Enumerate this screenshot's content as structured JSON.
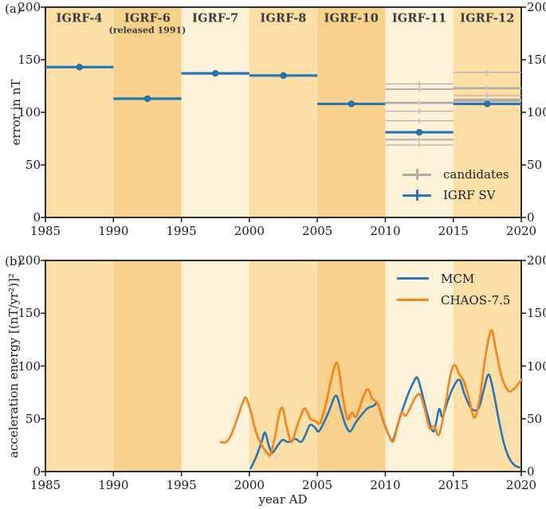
{
  "figure": {
    "panel_a_letter": "(a)",
    "panel_b_letter": "(b)"
  },
  "colors": {
    "blue": "#2577b5",
    "blue_dark": "#1b5e8f",
    "orange": "#f7821b",
    "gray": "#adadad",
    "gray_light": "#c3c3c3",
    "axis": "#1a1a1a",
    "band_light": "#fdf2d8",
    "band_medium": "#fbdfa6",
    "band_dark": "#f8d28c"
  },
  "x_axis": {
    "label": "year AD",
    "min": 1985,
    "max": 2020,
    "ticks": [
      1985,
      1990,
      1995,
      2000,
      2005,
      2010,
      2015,
      2020
    ]
  },
  "panel_a": {
    "ylabel": "error in nT",
    "ymin": 0,
    "ymax": 200,
    "y_ticks": [
      0,
      50,
      100,
      150,
      200
    ],
    "bands": [
      {
        "label": "IGRF-4",
        "sub": "",
        "span": [
          1985,
          1990
        ],
        "shade": "band_medium"
      },
      {
        "label": "IGRF-6",
        "sub": "(released 1991)",
        "span": [
          1990,
          1995
        ],
        "shade": "band_dark"
      },
      {
        "label": "IGRF-7",
        "sub": "",
        "span": [
          1995,
          2000
        ],
        "shade": "band_light"
      },
      {
        "label": "IGRF-8",
        "sub": "",
        "span": [
          2000,
          2005
        ],
        "shade": "band_medium"
      },
      {
        "label": "IGRF-10",
        "sub": "",
        "span": [
          2005,
          2010
        ],
        "shade": "band_dark"
      },
      {
        "label": "IGRF-11",
        "sub": "",
        "span": [
          2010,
          2015
        ],
        "shade": "band_light"
      },
      {
        "label": "IGRF-12",
        "sub": "",
        "span": [
          2015,
          2020
        ],
        "shade": "band_medium"
      }
    ],
    "legend": [
      {
        "label": "candidates",
        "color_key": "gray"
      },
      {
        "label": "IGRF SV",
        "color_key": "blue"
      }
    ]
  },
  "panel_b": {
    "ylabel": "acceleration energy [(nT/yr²)]²",
    "ymin": 0,
    "ymax": 200,
    "y_ticks": [
      0,
      50,
      100,
      150,
      200
    ],
    "legend": [
      {
        "label": "MCM",
        "color_key": "blue"
      },
      {
        "label": "CHAOS-7.5",
        "color_key": "orange"
      }
    ]
  },
  "chart_data": [
    {
      "type": "line",
      "title": "IGRF model prediction error",
      "xlabel": "year AD",
      "ylabel": "error in nT",
      "xlim": [
        1985,
        2020
      ],
      "ylim": [
        0,
        200
      ],
      "grid": false,
      "legend_position": "lower right",
      "igrf_sv_segments": [
        {
          "model": "IGRF-4",
          "x0": 1985,
          "x1": 1990,
          "value": 143,
          "marker_x": 1987.5
        },
        {
          "model": "IGRF-6",
          "x0": 1990,
          "x1": 1995,
          "value": 113,
          "marker_x": 1992.5
        },
        {
          "model": "IGRF-7",
          "x0": 1995,
          "x1": 2000,
          "value": 137,
          "marker_x": 1997.5
        },
        {
          "model": "IGRF-8",
          "x0": 2000,
          "x1": 2005,
          "value": 135,
          "marker_x": 2002.5
        },
        {
          "model": "IGRF-10",
          "x0": 2005,
          "x1": 2010,
          "value": 108,
          "marker_x": 2007.5
        },
        {
          "model": "IGRF-11",
          "x0": 2010,
          "x1": 2015,
          "value": 81,
          "marker_x": 2012.5
        },
        {
          "model": "IGRF-12",
          "x0": 2015,
          "x1": 2020,
          "value": 108,
          "marker_x": 2017.5
        }
      ],
      "candidates": [
        {
          "epoch": "IGRF-11",
          "x0": 2010,
          "x1": 2015,
          "marker_x": 2012.5,
          "values": [
            127,
            122,
            109,
            101,
            92,
            74,
            69
          ],
          "weights": [
            1.2,
            1.8,
            2.8,
            1.2,
            1.2,
            1.8,
            1.2
          ]
        },
        {
          "epoch": "IGRF-12",
          "x0": 2015,
          "x1": 2020,
          "marker_x": 2017.5,
          "values": [
            138,
            123,
            116,
            111.5
          ],
          "weights": [
            1.2,
            2.6,
            1.0,
            4.0
          ]
        }
      ]
    },
    {
      "type": "line",
      "title": "geomagnetic acceleration energy",
      "xlabel": "year AD",
      "ylabel": "acceleration energy [(nT/yr²)]²",
      "xlim": [
        1985,
        2020
      ],
      "ylim": [
        0,
        200
      ],
      "grid": false,
      "legend_position": "upper right",
      "series": [
        {
          "name": "MCM",
          "color_key": "blue",
          "points": [
            [
              2000.1,
              3
            ],
            [
              2000.5,
              14
            ],
            [
              2000.9,
              28
            ],
            [
              2001.15,
              37
            ],
            [
              2001.45,
              24
            ],
            [
              2001.7,
              18
            ],
            [
              2002.1,
              25
            ],
            [
              2002.45,
              30
            ],
            [
              2002.8,
              28
            ],
            [
              2003.1,
              29
            ],
            [
              2003.4,
              31
            ],
            [
              2003.8,
              28
            ],
            [
              2004.1,
              34
            ],
            [
              2004.45,
              44
            ],
            [
              2004.8,
              42
            ],
            [
              2005.1,
              38
            ],
            [
              2005.5,
              47
            ],
            [
              2005.85,
              57
            ],
            [
              2006.35,
              72
            ],
            [
              2006.7,
              60
            ],
            [
              2007.05,
              45
            ],
            [
              2007.4,
              38
            ],
            [
              2007.8,
              46
            ],
            [
              2008.2,
              53
            ],
            [
              2008.7,
              60
            ],
            [
              2009.1,
              62
            ],
            [
              2009.45,
              64
            ],
            [
              2009.8,
              50
            ],
            [
              2010.2,
              36
            ],
            [
              2010.55,
              30
            ],
            [
              2010.9,
              44
            ],
            [
              2011.3,
              60
            ],
            [
              2011.7,
              74
            ],
            [
              2012.05,
              84
            ],
            [
              2012.35,
              89
            ],
            [
              2012.7,
              74
            ],
            [
              2013.1,
              54
            ],
            [
              2013.55,
              38
            ],
            [
              2013.95,
              59
            ],
            [
              2014.2,
              52
            ],
            [
              2014.6,
              67
            ],
            [
              2015.0,
              80
            ],
            [
              2015.45,
              87
            ],
            [
              2015.8,
              74
            ],
            [
              2016.2,
              62
            ],
            [
              2016.55,
              58
            ],
            [
              2016.9,
              61
            ],
            [
              2017.25,
              78
            ],
            [
              2017.6,
              92
            ],
            [
              2017.95,
              76
            ],
            [
              2018.3,
              52
            ],
            [
              2018.7,
              28
            ],
            [
              2019.1,
              13
            ],
            [
              2019.5,
              6
            ],
            [
              2019.85,
              4
            ]
          ]
        },
        {
          "name": "CHAOS-7.5",
          "color_key": "orange",
          "points": [
            [
              1997.9,
              28
            ],
            [
              1998.3,
              28
            ],
            [
              1998.7,
              36
            ],
            [
              1999.1,
              50
            ],
            [
              1999.5,
              65
            ],
            [
              1999.75,
              70
            ],
            [
              2000.1,
              57
            ],
            [
              2000.5,
              37
            ],
            [
              2000.95,
              24
            ],
            [
              2001.3,
              18
            ],
            [
              2001.55,
              16
            ],
            [
              2001.9,
              34
            ],
            [
              2002.2,
              55
            ],
            [
              2002.45,
              60
            ],
            [
              2002.75,
              42
            ],
            [
              2003.1,
              28
            ],
            [
              2003.5,
              43
            ],
            [
              2003.95,
              58
            ],
            [
              2004.15,
              59
            ],
            [
              2004.5,
              50
            ],
            [
              2004.85,
              48
            ],
            [
              2005.2,
              46
            ],
            [
              2005.6,
              62
            ],
            [
              2006.0,
              86
            ],
            [
              2006.45,
              103
            ],
            [
              2006.85,
              73
            ],
            [
              2007.2,
              50
            ],
            [
              2007.55,
              56
            ],
            [
              2007.85,
              52
            ],
            [
              2008.3,
              68
            ],
            [
              2008.7,
              78
            ],
            [
              2009.05,
              69
            ],
            [
              2009.45,
              64
            ],
            [
              2009.9,
              47
            ],
            [
              2010.3,
              33
            ],
            [
              2010.6,
              29
            ],
            [
              2010.95,
              46
            ],
            [
              2011.2,
              56
            ],
            [
              2011.5,
              53
            ],
            [
              2011.85,
              61
            ],
            [
              2012.2,
              70
            ],
            [
              2012.55,
              73
            ],
            [
              2012.9,
              59
            ],
            [
              2013.25,
              41
            ],
            [
              2013.6,
              43
            ],
            [
              2013.95,
              35
            ],
            [
              2014.4,
              62
            ],
            [
              2014.8,
              92
            ],
            [
              2015.1,
              101
            ],
            [
              2015.45,
              92
            ],
            [
              2015.75,
              86
            ],
            [
              2016.1,
              72
            ],
            [
              2016.55,
              51
            ],
            [
              2016.95,
              70
            ],
            [
              2017.35,
              108
            ],
            [
              2017.8,
              134
            ],
            [
              2018.15,
              114
            ],
            [
              2018.55,
              90
            ],
            [
              2018.95,
              78
            ],
            [
              2019.2,
              76
            ],
            [
              2019.6,
              80
            ],
            [
              2020.0,
              87
            ]
          ]
        }
      ]
    }
  ]
}
